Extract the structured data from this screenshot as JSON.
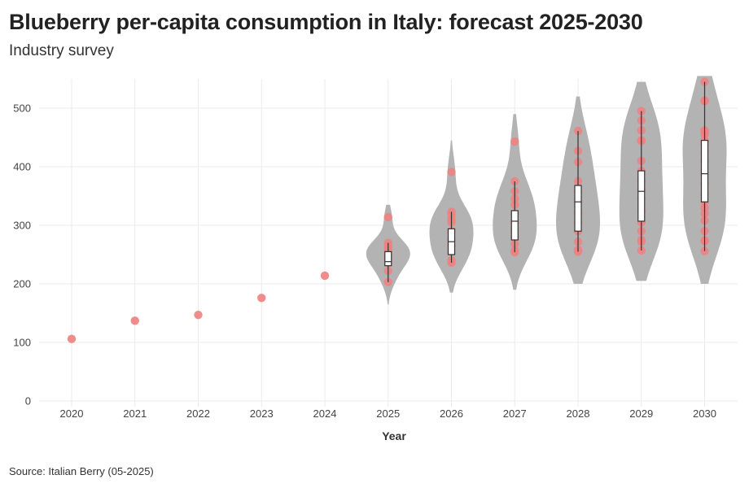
{
  "header": {
    "title": "Blueberry per-capita consumption in Italy: forecast 2025-2030",
    "subtitle": "Industry survey"
  },
  "footer": {
    "source": "Source: Italian Berry (05-2025)"
  },
  "colors": {
    "point": "#f08080",
    "violin": "#b3b3b3",
    "box": "#ffffff",
    "box_stroke": "#333333",
    "grid": "#ebebeb"
  },
  "chart_data": {
    "type": "violin+box+scatter",
    "title": "Blueberry per-capita consumption in Italy: forecast 2025-2030",
    "subtitle": "Industry survey",
    "xlabel": "Year",
    "ylabel": "",
    "categories": [
      "2020",
      "2021",
      "2022",
      "2023",
      "2024",
      "2025",
      "2026",
      "2027",
      "2028",
      "2029",
      "2030"
    ],
    "ylim": [
      0,
      550
    ],
    "yticks": [
      0,
      100,
      200,
      300,
      400,
      500
    ],
    "grid": true,
    "historical": [
      {
        "year": "2020",
        "value": 106
      },
      {
        "year": "2021",
        "value": 137
      },
      {
        "year": "2022",
        "value": 147
      },
      {
        "year": "2023",
        "value": 176
      },
      {
        "year": "2024",
        "value": 214
      }
    ],
    "forecast": [
      {
        "year": "2025",
        "points": [
          203,
          222,
          236,
          242,
          248,
          255,
          260,
          265,
          270,
          314
        ],
        "box": {
          "min": 203,
          "q1": 231,
          "median": 238,
          "q3": 255,
          "max": 270
        },
        "violin": {
          "min": 165,
          "max": 335
        }
      },
      {
        "year": "2026",
        "points": [
          236,
          240,
          255,
          265,
          275,
          290,
          305,
          310,
          318,
          323,
          391
        ],
        "box": {
          "min": 236,
          "q1": 250,
          "median": 272,
          "q3": 294,
          "max": 323
        },
        "violin": {
          "min": 185,
          "max": 445
        }
      },
      {
        "year": "2027",
        "points": [
          254,
          257,
          268,
          280,
          292,
          305,
          320,
          335,
          345,
          358,
          375,
          443
        ],
        "box": {
          "min": 254,
          "q1": 275,
          "median": 307,
          "q3": 325,
          "max": 375
        },
        "violin": {
          "min": 190,
          "max": 490
        }
      },
      {
        "year": "2028",
        "points": [
          255,
          258,
          272,
          290,
          305,
          322,
          340,
          358,
          375,
          408,
          427,
          461
        ],
        "box": {
          "min": 255,
          "q1": 290,
          "median": 340,
          "q3": 368,
          "max": 461
        },
        "violin": {
          "min": 200,
          "max": 520
        }
      },
      {
        "year": "2029",
        "points": [
          257,
          272,
          275,
          290,
          305,
          325,
          345,
          360,
          375,
          393,
          410,
          444,
          445,
          462,
          479,
          495
        ],
        "box": {
          "min": 257,
          "q1": 307,
          "median": 358,
          "q3": 393,
          "max": 495
        },
        "violin": {
          "min": 205,
          "max": 545
        }
      },
      {
        "year": "2030",
        "points": [
          256,
          273,
          274,
          290,
          308,
          320,
          330,
          340,
          355,
          370,
          390,
          410,
          425,
          440,
          445,
          455,
          460,
          462,
          512,
          513,
          545
        ],
        "box": {
          "min": 256,
          "q1": 340,
          "median": 388,
          "q3": 445,
          "max": 545
        },
        "violin": {
          "min": 200,
          "max": 555
        }
      }
    ]
  }
}
